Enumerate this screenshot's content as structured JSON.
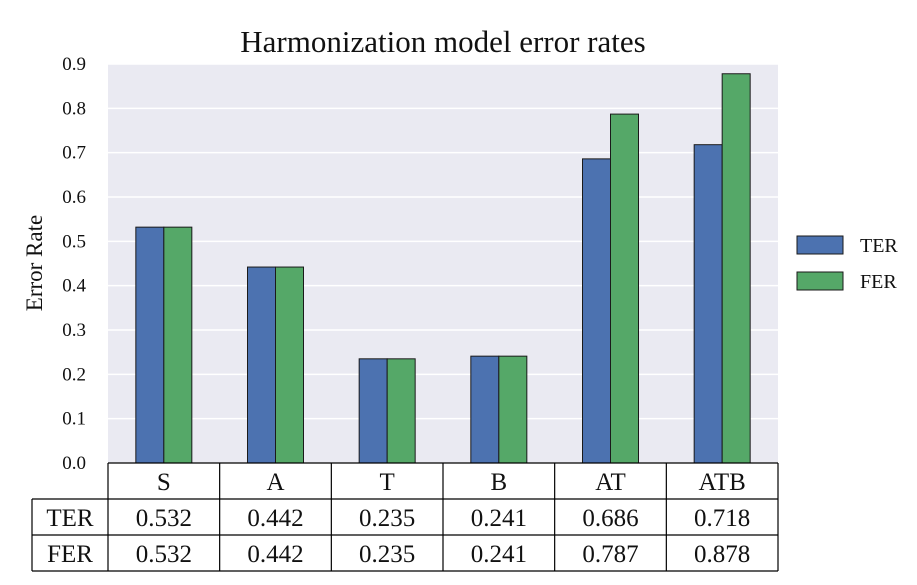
{
  "chart_data": {
    "type": "bar",
    "title": "Harmonization model error rates",
    "xlabel": "",
    "ylabel": "Error Rate",
    "ylim": [
      0,
      0.9
    ],
    "yticks": [
      "0.0",
      "0.1",
      "0.2",
      "0.3",
      "0.4",
      "0.5",
      "0.6",
      "0.7",
      "0.8",
      "0.9"
    ],
    "categories": [
      "S",
      "A",
      "T",
      "B",
      "AT",
      "ATB"
    ],
    "series": [
      {
        "name": "TER",
        "color": "#4c72b0",
        "values": [
          0.532,
          0.442,
          0.235,
          0.241,
          0.686,
          0.718
        ],
        "labels": [
          "0.532",
          "0.442",
          "0.235",
          "0.241",
          "0.686",
          "0.718"
        ]
      },
      {
        "name": "FER",
        "color": "#55a868",
        "values": [
          0.532,
          0.442,
          0.235,
          0.241,
          0.787,
          0.878
        ],
        "labels": [
          "0.532",
          "0.442",
          "0.235",
          "0.241",
          "0.787",
          "0.878"
        ]
      }
    ],
    "grid": true,
    "plot_background": "#eaeaf2",
    "legend_position": "right",
    "table_below": true
  }
}
